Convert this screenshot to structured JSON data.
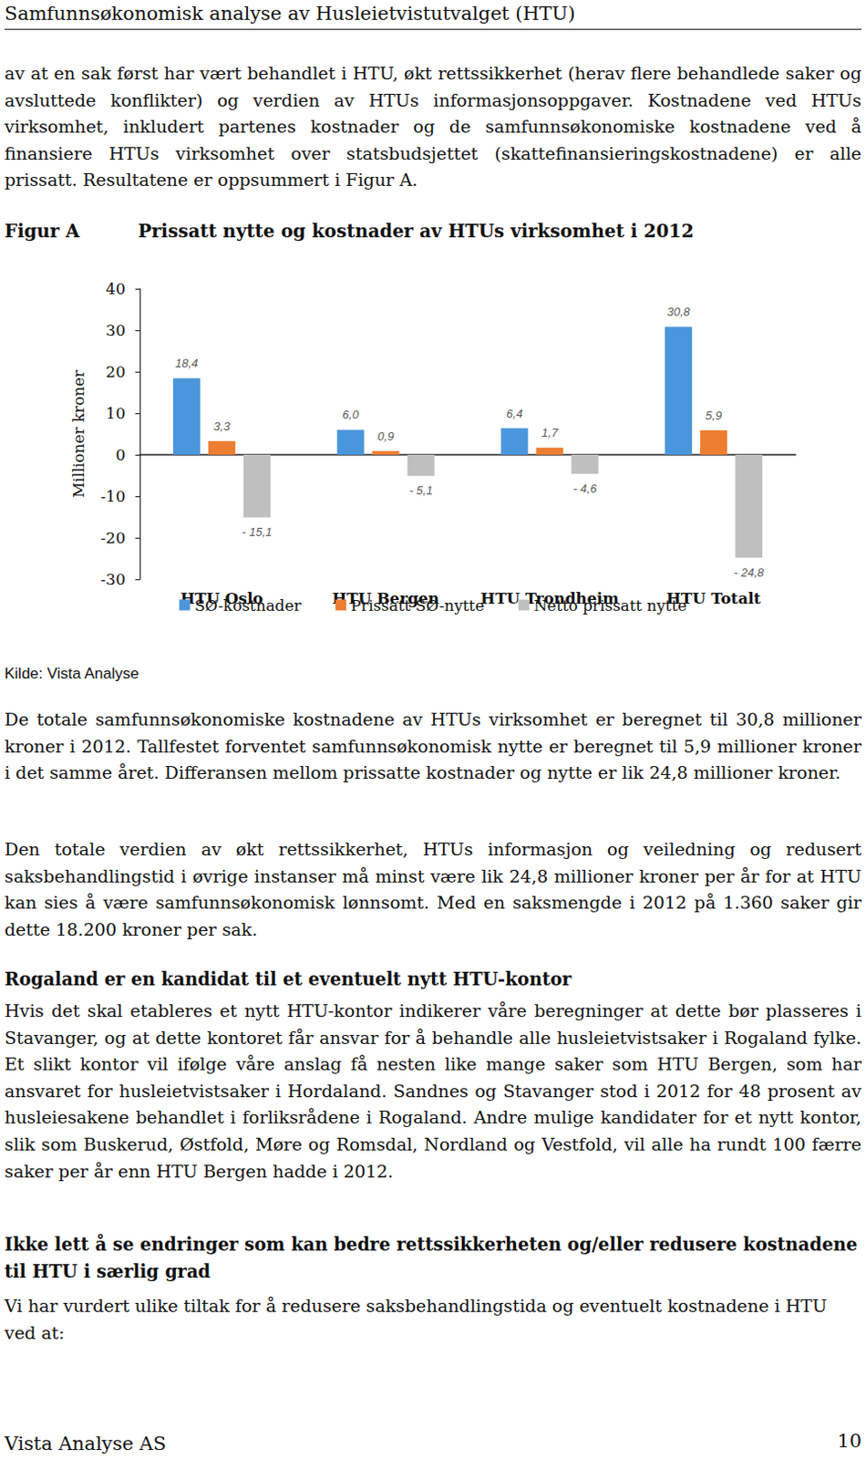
{
  "header": {
    "title": "Samfunnsøkonomisk analyse av Husleietvistutvalget (HTU)"
  },
  "intro": "av at en sak først har vært behandlet i HTU, økt rettssikkerhet (herav flere behandlede saker og avsluttede konflikter) og verdien av HTUs informasjonsoppgaver. Kostnadene ved HTUs virksomhet, inkludert partenes kostnader og de samfunnsøkonomiske kostnadene ved å finansiere HTUs virksomhet over statsbudsjettet (skattefinansierings­kostnadene) er alle prissatt. Resultatene er oppsummert i Figur A.",
  "figure": {
    "label": "Figur A",
    "title": "Prissatt nytte og kostnader av HTUs virksomhet i 2012",
    "source": "Kilde: Vista Analyse"
  },
  "chart_data": {
    "type": "bar",
    "categories": [
      "HTU Oslo",
      "HTU Bergen",
      "HTU Trondheim",
      "HTU Totalt"
    ],
    "series": [
      {
        "name": "SØ-kostnader",
        "color": "#4a96dc",
        "values": [
          18.4,
          6.0,
          6.4,
          30.8
        ],
        "value_labels": [
          "18,4",
          "6,0",
          "6,4",
          "30,8"
        ]
      },
      {
        "name": "Prissatt SØ-nytte",
        "color": "#ed7d31",
        "values": [
          3.3,
          0.9,
          1.7,
          5.9
        ],
        "value_labels": [
          "3,3",
          "0,9",
          "1,7",
          "5,9"
        ]
      },
      {
        "name": "Netto prissatt nytte",
        "color": "#bfbfbf",
        "values": [
          -15.1,
          -5.1,
          -4.6,
          -24.8
        ],
        "value_labels": [
          "- 15,1",
          "- 5,1",
          "- 4,6",
          "- 24,8"
        ]
      }
    ],
    "y_label": "Millioner kroner",
    "ylim": [
      -30,
      40
    ],
    "yticks": [
      -30,
      -20,
      -10,
      0,
      10,
      20,
      30,
      40
    ],
    "grid": false,
    "legend": "bottom",
    "data_labels": true
  },
  "body": [
    {
      "paragraph": "De totale samfunnsøkonomiske kostnadene av HTUs virksomhet er beregnet til 30,8 millioner kroner i 2012. Tallfestet forventet samfunnsøkonomisk nytte er beregnet til 5,9 millioner kroner i det samme året. Differansen mellom prissatte kostnader og nytte er lik 24,8 millioner kroner."
    },
    {
      "paragraph": "Den totale verdien av økt rettssikkerhet, HTUs informasjon og veiledning og redusert saksbehandlingstid i øvrige instanser må minst være lik 24,8 millioner kroner per år for at HTU kan sies å være samfunnsøkonomisk lønnsomt. Med en saksmengde i 2012 på 1.360 saker gir dette 18.200 kroner per sak."
    },
    {
      "heading": "Rogaland er en kandidat til et eventuelt nytt HTU-kontor"
    },
    {
      "paragraph": "Hvis det skal etableres et nytt HTU-kontor indikerer våre beregninger at dette bør plasseres i Stavanger, og at dette kontoret får ansvar for å behandle alle husleie­tvistsaker i Rogaland fylke. Et slikt kontor vil ifølge våre anslag få nesten like mange saker som HTU Bergen, som har ansvaret for husleietvistsaker i Hordaland. Sandnes og Stavanger stod i 2012 for 48 prosent av husleiesakene behandlet i forliksrådene i Rogaland. Andre mulige kandidater for et nytt kontor, slik som Buskerud, Østfold, Møre og Romsdal, Nordland og Vestfold, vil alle ha rundt 100 færre saker per år enn HTU Bergen hadde i 2012."
    },
    {
      "heading": "Ikke lett å se endringer som kan bedre rettssikkerheten og/eller redusere kostnadene til HTU i særlig grad"
    },
    {
      "paragraph": "Vi har vurdert ulike tiltak for å redusere saksbehandlingstida og eventuelt kostnadene i HTU ved at:"
    }
  ],
  "footer": {
    "left": "Vista Analyse AS",
    "page": "10"
  }
}
